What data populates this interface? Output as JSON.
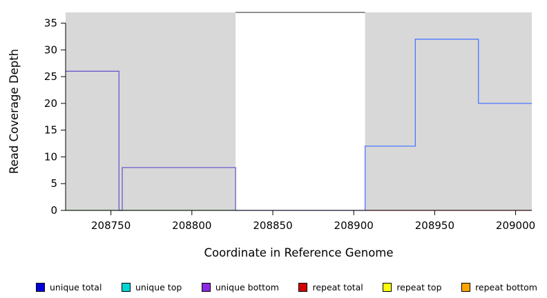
{
  "chart_data": {
    "type": "line",
    "title": "",
    "xlabel": "Coordinate in Reference Genome",
    "ylabel": "Read Coverage Depth",
    "xlim": [
      208722,
      209010
    ],
    "ylim": [
      0,
      37
    ],
    "xticks": [
      208750,
      208800,
      208850,
      208900,
      208950,
      209000
    ],
    "yticks": [
      0,
      5,
      10,
      15,
      20,
      25,
      30,
      35
    ],
    "grid": false,
    "legend_position": "bottom",
    "shaded_regions": [
      {
        "name": "left-gray-region",
        "x0": 208722,
        "x1": 208827,
        "color": "#d8d8d8"
      },
      {
        "name": "right-gray-region",
        "x0": 208907,
        "x1": 209010,
        "color": "#d8d8d8"
      }
    ],
    "series": [
      {
        "name": "unique-bottom-steps",
        "color": "#6a5acd",
        "width": 1.3,
        "points": [
          [
            208722,
            26
          ],
          [
            208755,
            26
          ],
          [
            208755,
            0
          ],
          [
            208757,
            0
          ],
          [
            208757,
            8
          ],
          [
            208827,
            8
          ],
          [
            208827,
            0
          ],
          [
            208907,
            0
          ]
        ]
      },
      {
        "name": "unique-total-steps",
        "color": "#4876ff",
        "width": 1.3,
        "points": [
          [
            208907,
            0
          ],
          [
            208907,
            12
          ],
          [
            208938,
            12
          ],
          [
            208938,
            32
          ],
          [
            208977,
            32
          ],
          [
            208977,
            20
          ],
          [
            209010,
            20
          ]
        ]
      },
      {
        "name": "left-zero-baseline",
        "color": "#3cb54a",
        "width": 1.2,
        "points": [
          [
            208722,
            0
          ],
          [
            208827,
            0
          ]
        ]
      },
      {
        "name": "right-zero-baseline",
        "color": "#e03131",
        "width": 1.2,
        "points": [
          [
            208907,
            0
          ],
          [
            209010,
            0
          ]
        ]
      },
      {
        "name": "clipped-top-line",
        "color": "#4d4d4d",
        "width": 1.2,
        "points": [
          [
            208827,
            37
          ],
          [
            208907,
            37
          ]
        ]
      }
    ],
    "legend": [
      {
        "label": "unique total",
        "color": "#0000dd"
      },
      {
        "label": "unique top",
        "color": "#00d5d5"
      },
      {
        "label": "unique bottom",
        "color": "#8a2be2"
      },
      {
        "label": "repeat total",
        "color": "#d40000"
      },
      {
        "label": "repeat top",
        "color": "#ffff00"
      },
      {
        "label": "repeat bottom",
        "color": "#ffa500"
      }
    ]
  }
}
